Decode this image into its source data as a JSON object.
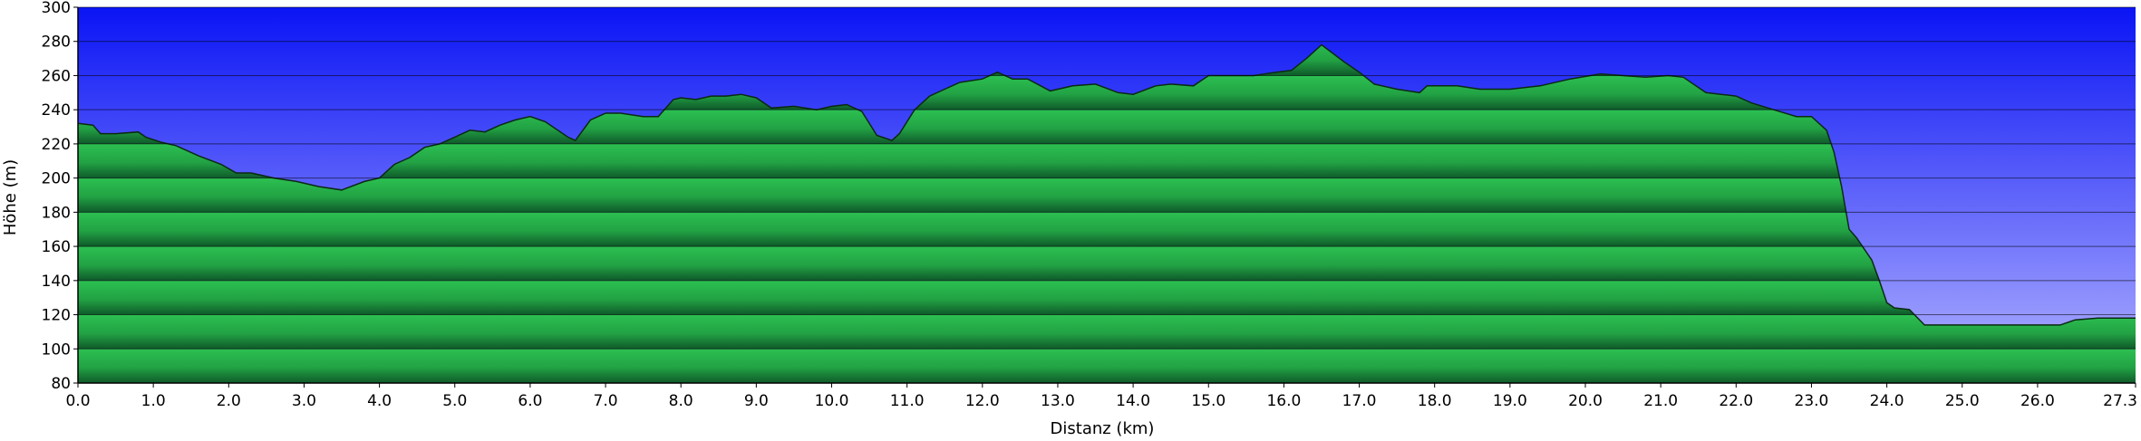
{
  "chart_data": {
    "type": "area",
    "title": "",
    "xlabel": "Distanz   (km)",
    "ylabel": "Höhe (m)",
    "xlim": [
      0.0,
      27.3
    ],
    "ylim": [
      80,
      300
    ],
    "x_ticks": [
      "0.0",
      "1.0",
      "2.0",
      "3.0",
      "4.0",
      "5.0",
      "6.0",
      "7.0",
      "8.0",
      "9.0",
      "10.0",
      "11.0",
      "12.0",
      "13.0",
      "14.0",
      "15.0",
      "16.0",
      "17.0",
      "18.0",
      "19.0",
      "20.0",
      "21.0",
      "22.0",
      "23.0",
      "24.0",
      "25.0",
      "26.0",
      "27.3"
    ],
    "y_ticks": [
      "80",
      "100",
      "120",
      "140",
      "160",
      "180",
      "200",
      "220",
      "240",
      "260",
      "280",
      "300"
    ],
    "grid": true,
    "legend": "none",
    "colors": {
      "sky_top": "#0a14f5",
      "sky_bottom": "#b4b4ff",
      "terrain_light": "#2cc051",
      "terrain_dark": "#0f5a2a",
      "grid": "#000000"
    },
    "series": [
      {
        "x": [
          0.0,
          0.2,
          0.3,
          0.5,
          0.8,
          0.9,
          1.1,
          1.3,
          1.6,
          1.9,
          2.1,
          2.3,
          2.6,
          2.9,
          3.2,
          3.5,
          3.8,
          4.0,
          4.2,
          4.4,
          4.6,
          4.8,
          5.0,
          5.2,
          5.4,
          5.6,
          5.8,
          6.0,
          6.2,
          6.5,
          6.6,
          6.8,
          7.0,
          7.2,
          7.5,
          7.7,
          7.9,
          8.0,
          8.2,
          8.4,
          8.6,
          8.8,
          9.0,
          9.2,
          9.5,
          9.8,
          10.0,
          10.2,
          10.4,
          10.6,
          10.8,
          10.9,
          11.1,
          11.3,
          11.5,
          11.7,
          12.0,
          12.2,
          12.4,
          12.6,
          12.9,
          13.2,
          13.5,
          13.8,
          14.0,
          14.3,
          14.5,
          14.8,
          15.0,
          15.3,
          15.6,
          15.9,
          16.1,
          16.3,
          16.5,
          16.8,
          17.0,
          17.2,
          17.5,
          17.8,
          17.9,
          18.0,
          18.3,
          18.6,
          19.0,
          19.4,
          19.8,
          20.2,
          20.5,
          20.8,
          21.1,
          21.3,
          21.6,
          21.8,
          22.0,
          22.2,
          22.5,
          22.8,
          23.0,
          23.2,
          23.3,
          23.4,
          23.5,
          23.6,
          23.8,
          23.9,
          24.0,
          24.1,
          24.3,
          24.5,
          24.6,
          25.0,
          25.5,
          26.0,
          26.3,
          26.5,
          26.8,
          27.0,
          27.25,
          27.3
        ],
        "values": [
          232,
          231,
          226,
          226,
          227,
          224,
          221,
          219,
          213,
          208,
          203,
          203,
          200,
          198,
          195,
          193,
          198,
          200,
          208,
          212,
          218,
          220,
          224,
          228,
          227,
          231,
          234,
          236,
          233,
          224,
          222,
          234,
          238,
          238,
          236,
          236,
          246,
          247,
          246,
          248,
          248,
          249,
          247,
          241,
          242,
          240,
          242,
          243,
          239,
          225,
          222,
          226,
          240,
          248,
          252,
          256,
          258,
          262,
          258,
          258,
          251,
          254,
          255,
          250,
          249,
          254,
          255,
          254,
          260,
          260,
          260,
          262,
          263,
          270,
          278,
          268,
          262,
          255,
          252,
          250,
          254,
          254,
          254,
          252,
          252,
          254,
          258,
          261,
          260,
          259,
          260,
          259,
          250,
          249,
          248,
          244,
          240,
          236,
          236,
          228,
          215,
          195,
          170,
          165,
          152,
          140,
          127,
          124,
          123,
          114,
          114,
          114,
          114,
          114,
          114,
          117,
          118,
          118,
          118,
          118
        ]
      }
    ]
  }
}
